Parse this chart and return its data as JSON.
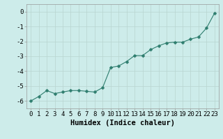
{
  "x": [
    0,
    1,
    2,
    3,
    4,
    5,
    6,
    7,
    8,
    9,
    10,
    11,
    12,
    13,
    14,
    15,
    16,
    17,
    18,
    19,
    20,
    21,
    22,
    23
  ],
  "y": [
    -6.0,
    -5.7,
    -5.3,
    -5.5,
    -5.4,
    -5.3,
    -5.3,
    -5.35,
    -5.4,
    -5.1,
    -3.75,
    -3.65,
    -3.35,
    -2.95,
    -2.95,
    -2.55,
    -2.3,
    -2.1,
    -2.05,
    -2.05,
    -1.85,
    -1.7,
    -1.1,
    -0.1
  ],
  "line_color": "#2e7d6e",
  "marker": "D",
  "marker_size": 2.5,
  "bg_color": "#cdecea",
  "grid_color": "#b8d4d0",
  "xlabel": "Humidex (Indice chaleur)",
  "xlim": [
    -0.5,
    23.5
  ],
  "ylim": [
    -6.5,
    0.5
  ],
  "yticks": [
    0,
    -1,
    -2,
    -3,
    -4,
    -5,
    -6
  ],
  "xticks": [
    0,
    1,
    2,
    3,
    4,
    5,
    6,
    7,
    8,
    9,
    10,
    11,
    12,
    13,
    14,
    15,
    16,
    17,
    18,
    19,
    20,
    21,
    22,
    23
  ],
  "tick_label_fontsize": 6.5,
  "xlabel_fontsize": 7.5
}
